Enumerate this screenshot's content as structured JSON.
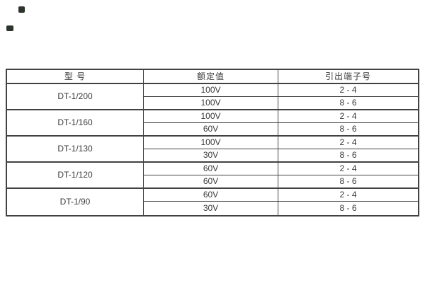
{
  "page": {
    "background": "#ffffff",
    "artifact_mark_color": "#2c342b"
  },
  "table": {
    "border_color": "#424242",
    "text_color": "#3a3a3a",
    "columns": [
      "型 号",
      "额定值",
      "引出端子号"
    ],
    "groups": [
      {
        "model": "DT-1/200",
        "rows": [
          [
            "100V",
            "2 - 4"
          ],
          [
            "100V",
            "8 - 6"
          ]
        ]
      },
      {
        "model": "DT-1/160",
        "rows": [
          [
            "100V",
            "2 - 4"
          ],
          [
            "60V",
            "8 - 6"
          ]
        ]
      },
      {
        "model": "DT-1/130",
        "rows": [
          [
            "100V",
            "2 - 4"
          ],
          [
            "30V",
            "8 - 6"
          ]
        ]
      },
      {
        "model": "DT-1/120",
        "rows": [
          [
            "60V",
            "2 - 4"
          ],
          [
            "60V",
            "8 - 6"
          ]
        ]
      },
      {
        "model": "DT-1/90",
        "rows": [
          [
            "60V",
            "2 - 4"
          ],
          [
            "30V",
            "8 - 6"
          ]
        ]
      }
    ]
  }
}
